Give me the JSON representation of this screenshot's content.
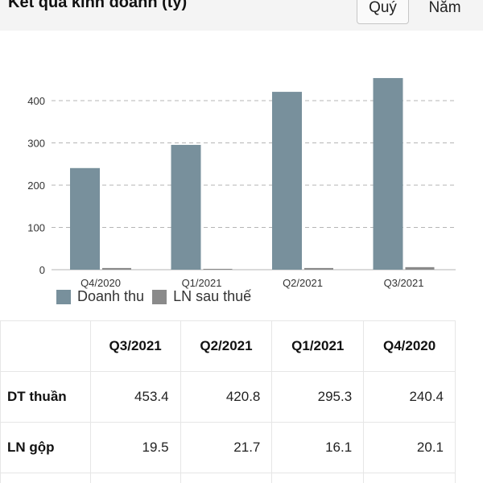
{
  "header": {
    "title": "Kết quả kinh doanh (tỷ)",
    "period_buttons": [
      {
        "label": "Quý",
        "selected": true
      },
      {
        "label": "Năm",
        "selected": false
      }
    ]
  },
  "colors": {
    "revenue": "#78909c",
    "profit": "#8a8a8a",
    "gridline": "#b5b5b5",
    "header_bg": "#f4f4f4"
  },
  "chart_data": {
    "type": "bar",
    "categories": [
      "Q4/2020",
      "Q1/2021",
      "Q2/2021",
      "Q3/2021"
    ],
    "series": [
      {
        "name": "Doanh thu",
        "values": [
          240.4,
          295.3,
          420.8,
          453.4
        ]
      },
      {
        "name": "LN sau thuế",
        "values": [
          4,
          2,
          4,
          6
        ]
      }
    ],
    "yticks": [
      0,
      100,
      200,
      300,
      400
    ],
    "ylim": [
      0,
      500
    ],
    "grid": true,
    "legend_position": "bottom-left"
  },
  "table": {
    "columns": [
      "Q3/2021",
      "Q2/2021",
      "Q1/2021",
      "Q4/2020"
    ],
    "rows": [
      {
        "label": "DT thuần",
        "values": [
          "453.4",
          "420.8",
          "295.3",
          "240.4"
        ]
      },
      {
        "label": "LN gộp",
        "values": [
          "19.5",
          "21.7",
          "16.1",
          "20.1"
        ]
      }
    ]
  }
}
